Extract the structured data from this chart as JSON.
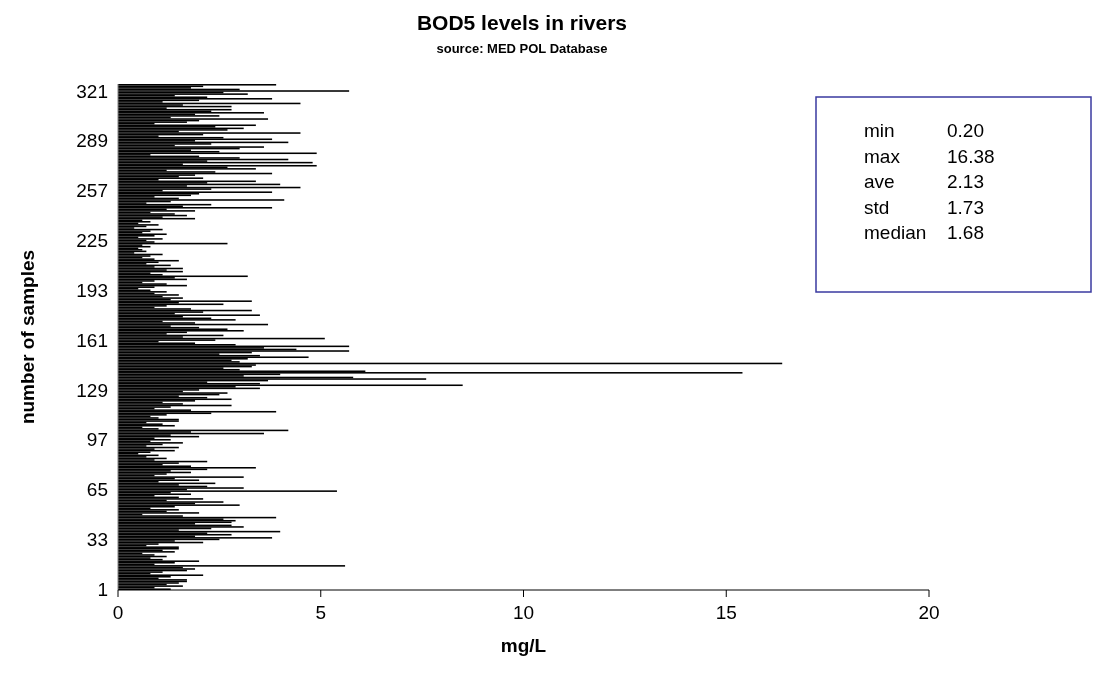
{
  "chart_data": {
    "type": "bar",
    "orientation": "horizontal",
    "title": "BOD5 levels in rivers",
    "subtitle": "source: MED POL Database",
    "xlabel": "mg/L",
    "ylabel": "number of samples",
    "categories": [
      null,
      null,
      null,
      null,
      "321",
      null,
      null,
      null,
      null,
      null,
      null,
      null,
      null,
      null,
      null,
      null,
      null,
      null,
      null,
      null,
      null,
      null,
      null,
      null,
      null,
      null,
      null,
      null,
      null,
      null,
      null,
      null,
      null,
      null,
      null,
      null,
      "289",
      null,
      null,
      null,
      null,
      null,
      null,
      null,
      null,
      null,
      null,
      null,
      null,
      null,
      null,
      null,
      null,
      null,
      null,
      null,
      null,
      null,
      null,
      null,
      null,
      null,
      null,
      null,
      null,
      null,
      null,
      null,
      "257",
      null,
      null,
      null,
      null,
      null,
      null,
      null,
      null,
      null,
      null,
      null,
      null,
      null,
      null,
      null,
      null,
      null,
      null,
      null,
      null,
      null,
      null,
      null,
      null,
      null,
      null,
      null,
      null,
      null,
      null,
      null,
      "225",
      null,
      null,
      null,
      null,
      null,
      null,
      null,
      null,
      null,
      null,
      null,
      null,
      null,
      null,
      null,
      null,
      null,
      null,
      null,
      null,
      null,
      null,
      null,
      null,
      null,
      null,
      null,
      null,
      null,
      null,
      null,
      "193",
      null,
      null,
      null,
      null,
      null,
      null,
      null,
      null,
      null,
      null,
      null,
      null,
      null,
      null,
      null,
      null,
      null,
      null,
      null,
      null,
      null,
      null,
      null,
      null,
      null,
      null,
      null,
      null,
      null,
      null,
      null,
      "161",
      null,
      null,
      null,
      null,
      null,
      null,
      null,
      null,
      null,
      null,
      null,
      null,
      null,
      null,
      null,
      null,
      null,
      null,
      null,
      null,
      null,
      null,
      null,
      null,
      null,
      null,
      null,
      null,
      null,
      null,
      null,
      "129",
      null,
      null,
      null,
      null,
      null,
      null,
      null,
      null,
      null,
      null,
      null,
      null,
      null,
      null,
      null,
      null,
      null,
      null,
      null,
      null,
      null,
      null,
      null,
      null,
      null,
      null,
      null,
      null,
      null,
      null,
      null,
      "97",
      null,
      null,
      null,
      null,
      null,
      null,
      null,
      null,
      null,
      null,
      null,
      null,
      null,
      null,
      null,
      null,
      null,
      null,
      null,
      null,
      null,
      null,
      null,
      null,
      null,
      null,
      null,
      null,
      null,
      null,
      null,
      "65",
      null,
      null,
      null,
      null,
      null,
      null,
      null,
      null,
      null,
      null,
      null,
      null,
      null,
      null,
      null,
      null,
      null,
      null,
      null,
      null,
      null,
      null,
      null,
      null,
      null,
      null,
      null,
      null,
      null,
      null,
      null,
      "33",
      null,
      null,
      null,
      null,
      null,
      null,
      null,
      null,
      null,
      null,
      null,
      null,
      null,
      null,
      null,
      null,
      null,
      null,
      null,
      null,
      null,
      null,
      null,
      null,
      null,
      null,
      null,
      null,
      null,
      null,
      null,
      "1"
    ],
    "values": [
      3.9,
      2.1,
      1.8,
      3.0,
      5.7,
      2.6,
      3.2,
      1.4,
      2.2,
      3.8,
      2.0,
      1.1,
      4.5,
      1.6,
      2.8,
      1.2,
      2.8,
      2.3,
      3.6,
      1.9,
      2.5,
      1.3,
      3.7,
      2.0,
      1.7,
      0.9,
      3.4,
      2.4,
      3.1,
      2.7,
      1.5,
      4.5,
      2.1,
      1.0,
      2.6,
      3.8,
      1.9,
      4.2,
      2.3,
      1.4,
      3.6,
      3.0,
      1.8,
      2.5,
      4.9,
      0.8,
      2.0,
      3.0,
      4.2,
      2.2,
      4.8,
      1.6,
      4.9,
      2.7,
      3.4,
      1.2,
      2.4,
      3.8,
      1.9,
      1.5,
      2.1,
      1.0,
      3.4,
      2.2,
      4.0,
      1.7,
      4.5,
      2.3,
      1.1,
      3.8,
      2.0,
      1.8,
      0.9,
      1.5,
      4.1,
      1.3,
      0.7,
      2.3,
      1.6,
      3.8,
      1.2,
      1.9,
      0.8,
      1.4,
      1.7,
      1.1,
      1.9,
      0.6,
      0.8,
      0.5,
      1.0,
      0.7,
      0.4,
      1.1,
      0.8,
      0.6,
      1.2,
      0.9,
      0.5,
      1.1,
      0.7,
      0.9,
      2.7,
      0.6,
      0.8,
      0.5,
      0.6,
      0.7,
      0.4,
      1.1,
      0.8,
      0.6,
      0.9,
      1.5,
      1.0,
      0.7,
      1.3,
      0.9,
      1.6,
      1.2,
      1.6,
      0.8,
      1.1,
      3.2,
      1.4,
      1.7,
      0.9,
      0.6,
      1.2,
      1.7,
      0.9,
      0.5,
      0.8,
      1.2,
      0.9,
      1.5,
      1.1,
      1.6,
      1.3,
      3.3,
      1.5,
      2.6,
      1.2,
      0.9,
      1.8,
      3.3,
      2.1,
      1.4,
      3.5,
      1.6,
      2.3,
      2.9,
      1.1,
      1.9,
      3.7,
      1.3,
      2.0,
      2.7,
      3.1,
      1.7,
      1.2,
      2.6,
      1.6,
      5.1,
      2.4,
      1.0,
      1.9,
      2.9,
      5.7,
      3.6,
      4.4,
      5.7,
      3.3,
      2.5,
      3.5,
      4.7,
      3.2,
      2.8,
      3.0,
      16.38,
      3.4,
      3.3,
      2.6,
      3.0,
      6.1,
      15.4,
      4.0,
      3.1,
      5.8,
      7.6,
      3.7,
      2.2,
      3.5,
      8.5,
      2.9,
      3.5,
      2.0,
      1.6,
      2.7,
      2.5,
      1.5,
      2.2,
      2.8,
      1.9,
      1.1,
      1.6,
      2.8,
      1.3,
      0.9,
      1.8,
      3.9,
      2.3,
      1.2,
      0.8,
      1.0,
      1.5,
      1.5,
      0.7,
      1.1,
      1.4,
      0.6,
      1.0,
      4.2,
      1.8,
      3.6,
      1.3,
      2.0,
      0.9,
      1.3,
      0.8,
      1.6,
      1.1,
      0.7,
      1.5,
      0.9,
      1.4,
      0.8,
      0.5,
      1.0,
      0.7,
      1.2,
      0.9,
      2.2,
      1.5,
      1.1,
      1.8,
      3.4,
      2.2,
      1.3,
      1.8,
      1.2,
      0.9,
      3.1,
      1.4,
      2.0,
      1.0,
      2.4,
      1.5,
      2.2,
      3.1,
      1.7,
      5.4,
      1.3,
      1.8,
      0.9,
      1.5,
      2.1,
      1.2,
      2.6,
      1.9,
      3.0,
      1.4,
      0.8,
      1.5,
      1.2,
      2.0,
      0.6,
      1.6,
      3.9,
      2.6,
      2.9,
      2.8,
      1.9,
      2.8,
      3.1,
      2.3,
      1.5,
      4.0,
      2.2,
      2.8,
      1.9,
      3.8,
      2.5,
      1.4,
      2.1,
      1.0,
      0.7,
      1.5,
      1.5,
      1.1,
      1.4,
      0.6,
      0.9,
      1.2,
      0.8,
      1.1,
      2.0,
      1.4,
      0.9,
      5.6,
      1.6,
      1.9,
      1.7,
      1.1,
      0.8,
      2.1,
      1.3,
      1.0,
      1.7,
      1.7,
      1.5,
      1.2,
      1.6,
      0.9,
      1.3
    ],
    "color": "#000000",
    "xlim": [
      0,
      20
    ],
    "xticks": [
      0,
      5,
      10,
      15,
      20
    ],
    "grid": false,
    "annotations": [
      "min 0.20",
      "max 16.38",
      "ave 2.13",
      "std 1.73",
      "median 1.68"
    ]
  }
}
